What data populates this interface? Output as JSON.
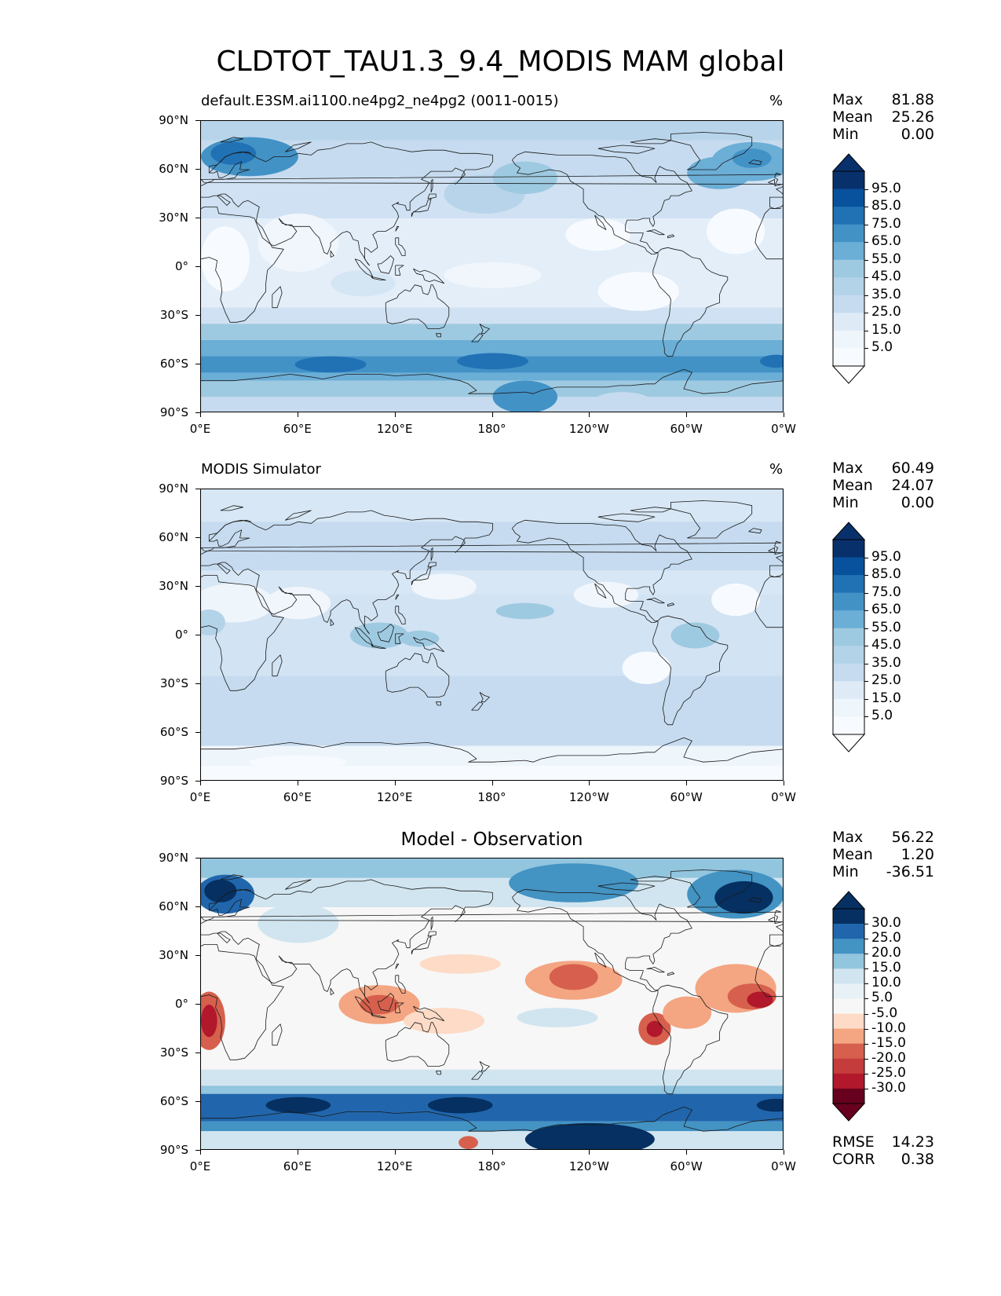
{
  "figure_title": "CLDTOT_TAU1.3_9.4_MODIS MAM global",
  "lat_ticks": [
    "90°N",
    "60°N",
    "30°N",
    "0°",
    "30°S",
    "60°S",
    "90°S"
  ],
  "lon_ticks": [
    "0°E",
    "60°E",
    "120°E",
    "180°",
    "120°W",
    "60°W",
    "0°W"
  ],
  "panels": [
    {
      "title": "default.E3SM.ai1100.ne4pg2_ne4pg2 (0011-0015)",
      "units": "%",
      "stats": {
        "max_label": "Max",
        "max": "81.88",
        "mean_label": "Mean",
        "mean": "25.26",
        "min_label": "Min",
        "min": "0.00"
      },
      "colorbar_labels": [
        "95.0",
        "85.0",
        "75.0",
        "65.0",
        "55.0",
        "45.0",
        "35.0",
        "25.0",
        "15.0",
        "5.0"
      ]
    },
    {
      "title": "MODIS Simulator",
      "units": "%",
      "stats": {
        "max_label": "Max",
        "max": "60.49",
        "mean_label": "Mean",
        "mean": "24.07",
        "min_label": "Min",
        "min": "0.00"
      },
      "colorbar_labels": [
        "95.0",
        "85.0",
        "75.0",
        "65.0",
        "55.0",
        "45.0",
        "35.0",
        "25.0",
        "15.0",
        "5.0"
      ]
    },
    {
      "title": "Model - Observation",
      "units": "",
      "stats": {
        "max_label": "Max",
        "max": "56.22",
        "mean_label": "Mean",
        "mean": "1.20",
        "min_label": "Min",
        "min": "-36.51"
      },
      "colorbar_labels": [
        "30.0",
        "25.0",
        "20.0",
        "15.0",
        "10.0",
        "5.0",
        "-5.0",
        "-10.0",
        "-15.0",
        "-20.0",
        "-25.0",
        "-30.0"
      ],
      "rmse_label": "RMSE",
      "rmse": "14.23",
      "corr_label": "CORR",
      "corr": "0.38"
    }
  ],
  "colors": {
    "blues": [
      "#f7fbff",
      "#deebf7",
      "#c6dbef",
      "#b3d3e8",
      "#9ecae1",
      "#6baed6",
      "#4292c6",
      "#2171b5",
      "#08519c",
      "#08306b"
    ],
    "diverging_neg": [
      "#67001f",
      "#b2182b",
      "#d6604d",
      "#f4a582",
      "#fddbc7"
    ],
    "diverging_pos": [
      "#d1e5f0",
      "#92c5de",
      "#4393c3",
      "#2166ac",
      "#053061"
    ],
    "neutral": "#f7f7f7"
  }
}
